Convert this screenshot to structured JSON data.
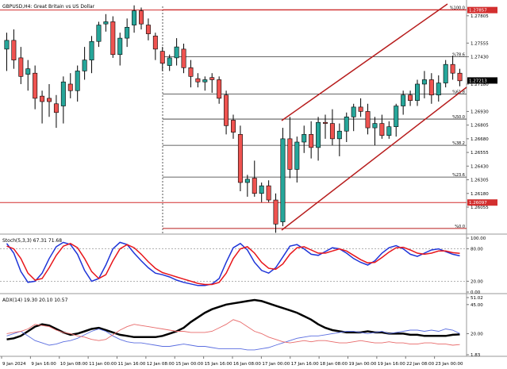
{
  "window": {
    "title": "GBPUSD,H4:  Great Britain vs US Dollar"
  },
  "colors": {
    "bull": "#26a69a",
    "bear": "#ef5350",
    "wick": "#000000",
    "channel": "#b71c1c",
    "fib_line": "#000000",
    "hline": "#d32f2f",
    "stoch_main": "#1f35d8",
    "stoch_signal": "#e8161b",
    "adx_main": "#000000",
    "adx_plus": "#5b6ee0",
    "adx_minus": "#e86a6a",
    "grid": "#c9c9c9"
  },
  "price_axis": {
    "labels": [
      "1.27805",
      "1.27555",
      "1.27430",
      "1.27180",
      "1.26930",
      "1.26805",
      "1.26680",
      "1.26555",
      "1.26430",
      "1.26305",
      "1.26180",
      "1.26055"
    ],
    "markers": [
      {
        "text": "1.27857",
        "value": 1.27857,
        "color": "#d32f2f"
      },
      {
        "text": "1.27213",
        "value": 1.27213,
        "color": "#000000"
      },
      {
        "text": "1.26097",
        "value": 1.26097,
        "color": "#d32f2f"
      }
    ]
  },
  "fibonacci": {
    "levels": [
      {
        "label": "%100.0",
        "price": 1.2786
      },
      {
        "label": "%78.6",
        "price": 1.2743
      },
      {
        "label": "%61.8",
        "price": 1.2709
      },
      {
        "label": "%50.0",
        "price": 1.2686
      },
      {
        "label": "%38.2",
        "price": 1.2662
      },
      {
        "label": "%23.6",
        "price": 1.2633
      },
      {
        "label": "%0.0",
        "price": 1.2586
      }
    ]
  },
  "chart_data": [
    {
      "type": "candlestick",
      "title": "GBPUSD,H4:  Great Britain vs US Dollar",
      "ylim": [
        1.2583,
        1.2792
      ],
      "x_tick_labels": [
        "9 Jan 2024",
        "9 Jan 16:00",
        "10 Jan 08:00",
        "11 Jan 00:00",
        "11 Jan 16:00",
        "12 Jan 08:00",
        "15 Jan 00:00",
        "15 Jan 16:00",
        "16 Jan 08:00",
        "17 Jan 00:00",
        "17 Jan 16:00",
        "18 Jan 08:00",
        "19 Jan 00:00",
        "19 Jan 16:00",
        "22 Jan 08:00",
        "23 Jan 00:00"
      ],
      "candles": [
        {
          "o": 1.275,
          "h": 1.2765,
          "l": 1.273,
          "c": 1.2758
        },
        {
          "o": 1.2758,
          "h": 1.2768,
          "l": 1.2732,
          "c": 1.274
        },
        {
          "o": 1.2742,
          "h": 1.2752,
          "l": 1.2718,
          "c": 1.2725
        },
        {
          "o": 1.2727,
          "h": 1.274,
          "l": 1.2712,
          "c": 1.2732
        },
        {
          "o": 1.2728,
          "h": 1.2735,
          "l": 1.2695,
          "c": 1.2705
        },
        {
          "o": 1.2707,
          "h": 1.2712,
          "l": 1.2682,
          "c": 1.2702
        },
        {
          "o": 1.2705,
          "h": 1.2718,
          "l": 1.2688,
          "c": 1.2702
        },
        {
          "o": 1.27,
          "h": 1.2708,
          "l": 1.2678,
          "c": 1.2692
        },
        {
          "o": 1.2698,
          "h": 1.2725,
          "l": 1.2682,
          "c": 1.272
        },
        {
          "o": 1.2718,
          "h": 1.2728,
          "l": 1.2705,
          "c": 1.2712
        },
        {
          "o": 1.2712,
          "h": 1.2735,
          "l": 1.2702,
          "c": 1.273
        },
        {
          "o": 1.273,
          "h": 1.2752,
          "l": 1.2722,
          "c": 1.274
        },
        {
          "o": 1.274,
          "h": 1.2762,
          "l": 1.2728,
          "c": 1.2757
        },
        {
          "o": 1.2757,
          "h": 1.2775,
          "l": 1.2752,
          "c": 1.2772
        },
        {
          "o": 1.2773,
          "h": 1.2782,
          "l": 1.2766,
          "c": 1.2775
        },
        {
          "o": 1.2775,
          "h": 1.278,
          "l": 1.2742,
          "c": 1.2745
        },
        {
          "o": 1.2745,
          "h": 1.2765,
          "l": 1.2735,
          "c": 1.276
        },
        {
          "o": 1.276,
          "h": 1.2778,
          "l": 1.2752,
          "c": 1.277
        },
        {
          "o": 1.2772,
          "h": 1.279,
          "l": 1.2765,
          "c": 1.2785
        },
        {
          "o": 1.2785,
          "h": 1.2788,
          "l": 1.2768,
          "c": 1.2773
        },
        {
          "o": 1.2772,
          "h": 1.2778,
          "l": 1.2758,
          "c": 1.2764
        },
        {
          "o": 1.2762,
          "h": 1.2765,
          "l": 1.274,
          "c": 1.275
        },
        {
          "o": 1.2748,
          "h": 1.2752,
          "l": 1.273,
          "c": 1.2737
        },
        {
          "o": 1.2735,
          "h": 1.2745,
          "l": 1.273,
          "c": 1.2742
        },
        {
          "o": 1.2742,
          "h": 1.276,
          "l": 1.2735,
          "c": 1.2752
        },
        {
          "o": 1.275,
          "h": 1.2755,
          "l": 1.2728,
          "c": 1.2733
        },
        {
          "o": 1.2733,
          "h": 1.274,
          "l": 1.2715,
          "c": 1.2725
        },
        {
          "o": 1.2723,
          "h": 1.2728,
          "l": 1.2715,
          "c": 1.272
        },
        {
          "o": 1.272,
          "h": 1.2725,
          "l": 1.2712,
          "c": 1.2722
        },
        {
          "o": 1.2724,
          "h": 1.2728,
          "l": 1.271,
          "c": 1.2722
        },
        {
          "o": 1.2722,
          "h": 1.2725,
          "l": 1.27,
          "c": 1.2705
        },
        {
          "o": 1.2708,
          "h": 1.2712,
          "l": 1.2672,
          "c": 1.268
        },
        {
          "o": 1.2685,
          "h": 1.269,
          "l": 1.2668,
          "c": 1.2674
        },
        {
          "o": 1.2672,
          "h": 1.268,
          "l": 1.262,
          "c": 1.2628
        },
        {
          "o": 1.2628,
          "h": 1.2635,
          "l": 1.2615,
          "c": 1.2631
        },
        {
          "o": 1.2632,
          "h": 1.2648,
          "l": 1.2615,
          "c": 1.2618
        },
        {
          "o": 1.2618,
          "h": 1.2628,
          "l": 1.261,
          "c": 1.2625
        },
        {
          "o": 1.2625,
          "h": 1.263,
          "l": 1.261,
          "c": 1.2612
        },
        {
          "o": 1.2612,
          "h": 1.2618,
          "l": 1.2582,
          "c": 1.259
        },
        {
          "o": 1.2592,
          "h": 1.2678,
          "l": 1.2588,
          "c": 1.2668
        },
        {
          "o": 1.2668,
          "h": 1.2688,
          "l": 1.2632,
          "c": 1.264
        },
        {
          "o": 1.264,
          "h": 1.267,
          "l": 1.2628,
          "c": 1.2665
        },
        {
          "o": 1.2665,
          "h": 1.268,
          "l": 1.2655,
          "c": 1.2672
        },
        {
          "o": 1.2672,
          "h": 1.2684,
          "l": 1.265,
          "c": 1.266
        },
        {
          "o": 1.266,
          "h": 1.2688,
          "l": 1.2648,
          "c": 1.2683
        },
        {
          "o": 1.2683,
          "h": 1.269,
          "l": 1.2668,
          "c": 1.2682
        },
        {
          "o": 1.2682,
          "h": 1.2695,
          "l": 1.2662,
          "c": 1.2668
        },
        {
          "o": 1.2668,
          "h": 1.2682,
          "l": 1.2652,
          "c": 1.2675
        },
        {
          "o": 1.2675,
          "h": 1.2692,
          "l": 1.2665,
          "c": 1.2688
        },
        {
          "o": 1.2688,
          "h": 1.27,
          "l": 1.2675,
          "c": 1.2697
        },
        {
          "o": 1.2697,
          "h": 1.2705,
          "l": 1.2688,
          "c": 1.2693
        },
        {
          "o": 1.2693,
          "h": 1.27,
          "l": 1.2672,
          "c": 1.2678
        },
        {
          "o": 1.2678,
          "h": 1.2688,
          "l": 1.2662,
          "c": 1.2682
        },
        {
          "o": 1.2682,
          "h": 1.269,
          "l": 1.2668,
          "c": 1.2671
        },
        {
          "o": 1.2671,
          "h": 1.2684,
          "l": 1.2668,
          "c": 1.2679
        },
        {
          "o": 1.2679,
          "h": 1.27,
          "l": 1.267,
          "c": 1.2698
        },
        {
          "o": 1.2698,
          "h": 1.2712,
          "l": 1.269,
          "c": 1.2708
        },
        {
          "o": 1.2708,
          "h": 1.2712,
          "l": 1.2698,
          "c": 1.2703
        },
        {
          "o": 1.2703,
          "h": 1.2722,
          "l": 1.2698,
          "c": 1.2718
        },
        {
          "o": 1.2718,
          "h": 1.273,
          "l": 1.2705,
          "c": 1.2722
        },
        {
          "o": 1.2722,
          "h": 1.2728,
          "l": 1.27,
          "c": 1.2708
        },
        {
          "o": 1.2708,
          "h": 1.2726,
          "l": 1.2702,
          "c": 1.2719
        },
        {
          "o": 1.2719,
          "h": 1.274,
          "l": 1.2715,
          "c": 1.2736
        },
        {
          "o": 1.2736,
          "h": 1.2744,
          "l": 1.2722,
          "c": 1.2728
        },
        {
          "o": 1.2728,
          "h": 1.2732,
          "l": 1.2716,
          "c": 1.2721
        }
      ]
    },
    {
      "type": "line",
      "title": "Stoch(5,3,3) 67.31 71.68",
      "ylim": [
        0,
        100
      ],
      "y_tick_labels": [
        "100.00",
        "80.00",
        "20.00",
        "0.00"
      ],
      "levels": [
        80,
        20
      ],
      "series": [
        {
          "name": "main",
          "values": [
            90,
            72,
            38,
            18,
            20,
            35,
            62,
            84,
            92,
            88,
            70,
            40,
            20,
            25,
            50,
            80,
            92,
            88,
            72,
            58,
            45,
            35,
            32,
            28,
            22,
            18,
            15,
            12,
            12,
            15,
            25,
            55,
            82,
            90,
            78,
            55,
            40,
            35,
            45,
            65,
            85,
            88,
            80,
            70,
            68,
            75,
            82,
            80,
            72,
            62,
            55,
            50,
            58,
            72,
            82,
            86,
            80,
            70,
            66,
            72,
            78,
            80,
            75,
            70,
            67
          ]
        },
        {
          "name": "signal",
          "values": [
            85,
            80,
            62,
            35,
            22,
            25,
            45,
            68,
            85,
            90,
            82,
            62,
            38,
            25,
            32,
            58,
            80,
            88,
            82,
            70,
            56,
            44,
            36,
            32,
            28,
            24,
            20,
            16,
            14,
            14,
            18,
            35,
            62,
            80,
            84,
            72,
            55,
            44,
            42,
            52,
            70,
            82,
            84,
            78,
            72,
            72,
            76,
            80,
            76,
            68,
            60,
            54,
            55,
            64,
            74,
            82,
            83,
            78,
            72,
            70,
            72,
            76,
            76,
            73,
            71.68
          ]
        }
      ]
    },
    {
      "type": "line",
      "title": "ADX(14) 19.30 20.10 10.57",
      "ylim": [
        1.83,
        51.02
      ],
      "y_tick_labels": [
        "51.02",
        "45.00",
        "20.00",
        "1.83"
      ],
      "series": [
        {
          "name": "ADX",
          "values": [
            15,
            16,
            18,
            22,
            26,
            28,
            27,
            24,
            21,
            19,
            20,
            22,
            24,
            25,
            23,
            21,
            19,
            18,
            17,
            17,
            17,
            17,
            18,
            20,
            22,
            25,
            30,
            34,
            38,
            41,
            43,
            45,
            46,
            47,
            48,
            49,
            48,
            46,
            44,
            42,
            40,
            38,
            35,
            32,
            28,
            25,
            23,
            22,
            21,
            21,
            21,
            22,
            21,
            21,
            20,
            20,
            20,
            19,
            19,
            18,
            18,
            18,
            18,
            19,
            19.3
          ]
        },
        {
          "name": "+DI",
          "values": [
            18,
            20,
            22,
            18,
            14,
            12,
            10,
            11,
            13,
            14,
            16,
            19,
            22,
            24,
            22,
            18,
            15,
            13,
            12,
            12,
            11,
            10,
            9,
            9,
            10,
            11,
            10,
            9,
            9,
            8,
            7,
            7,
            7,
            7,
            6,
            6,
            7,
            8,
            10,
            12,
            14,
            16,
            17,
            18,
            18,
            19,
            20,
            21,
            22,
            22,
            21,
            20,
            21,
            22,
            20,
            21,
            22,
            23,
            23,
            22,
            23,
            22,
            24,
            23,
            20.1
          ]
        },
        {
          "name": "-DI",
          "values": [
            20,
            21,
            22,
            24,
            28,
            27,
            26,
            23,
            21,
            20,
            18,
            17,
            15,
            14,
            15,
            19,
            23,
            26,
            28,
            27,
            26,
            25,
            24,
            23,
            22,
            22,
            21,
            21,
            21,
            22,
            25,
            28,
            32,
            30,
            26,
            22,
            20,
            17,
            15,
            13,
            12,
            13,
            14,
            13,
            14,
            14,
            13,
            12,
            12,
            13,
            14,
            13,
            12,
            12,
            13,
            12,
            12,
            11,
            11,
            12,
            12,
            11,
            11,
            10,
            10.57
          ]
        }
      ]
    }
  ]
}
